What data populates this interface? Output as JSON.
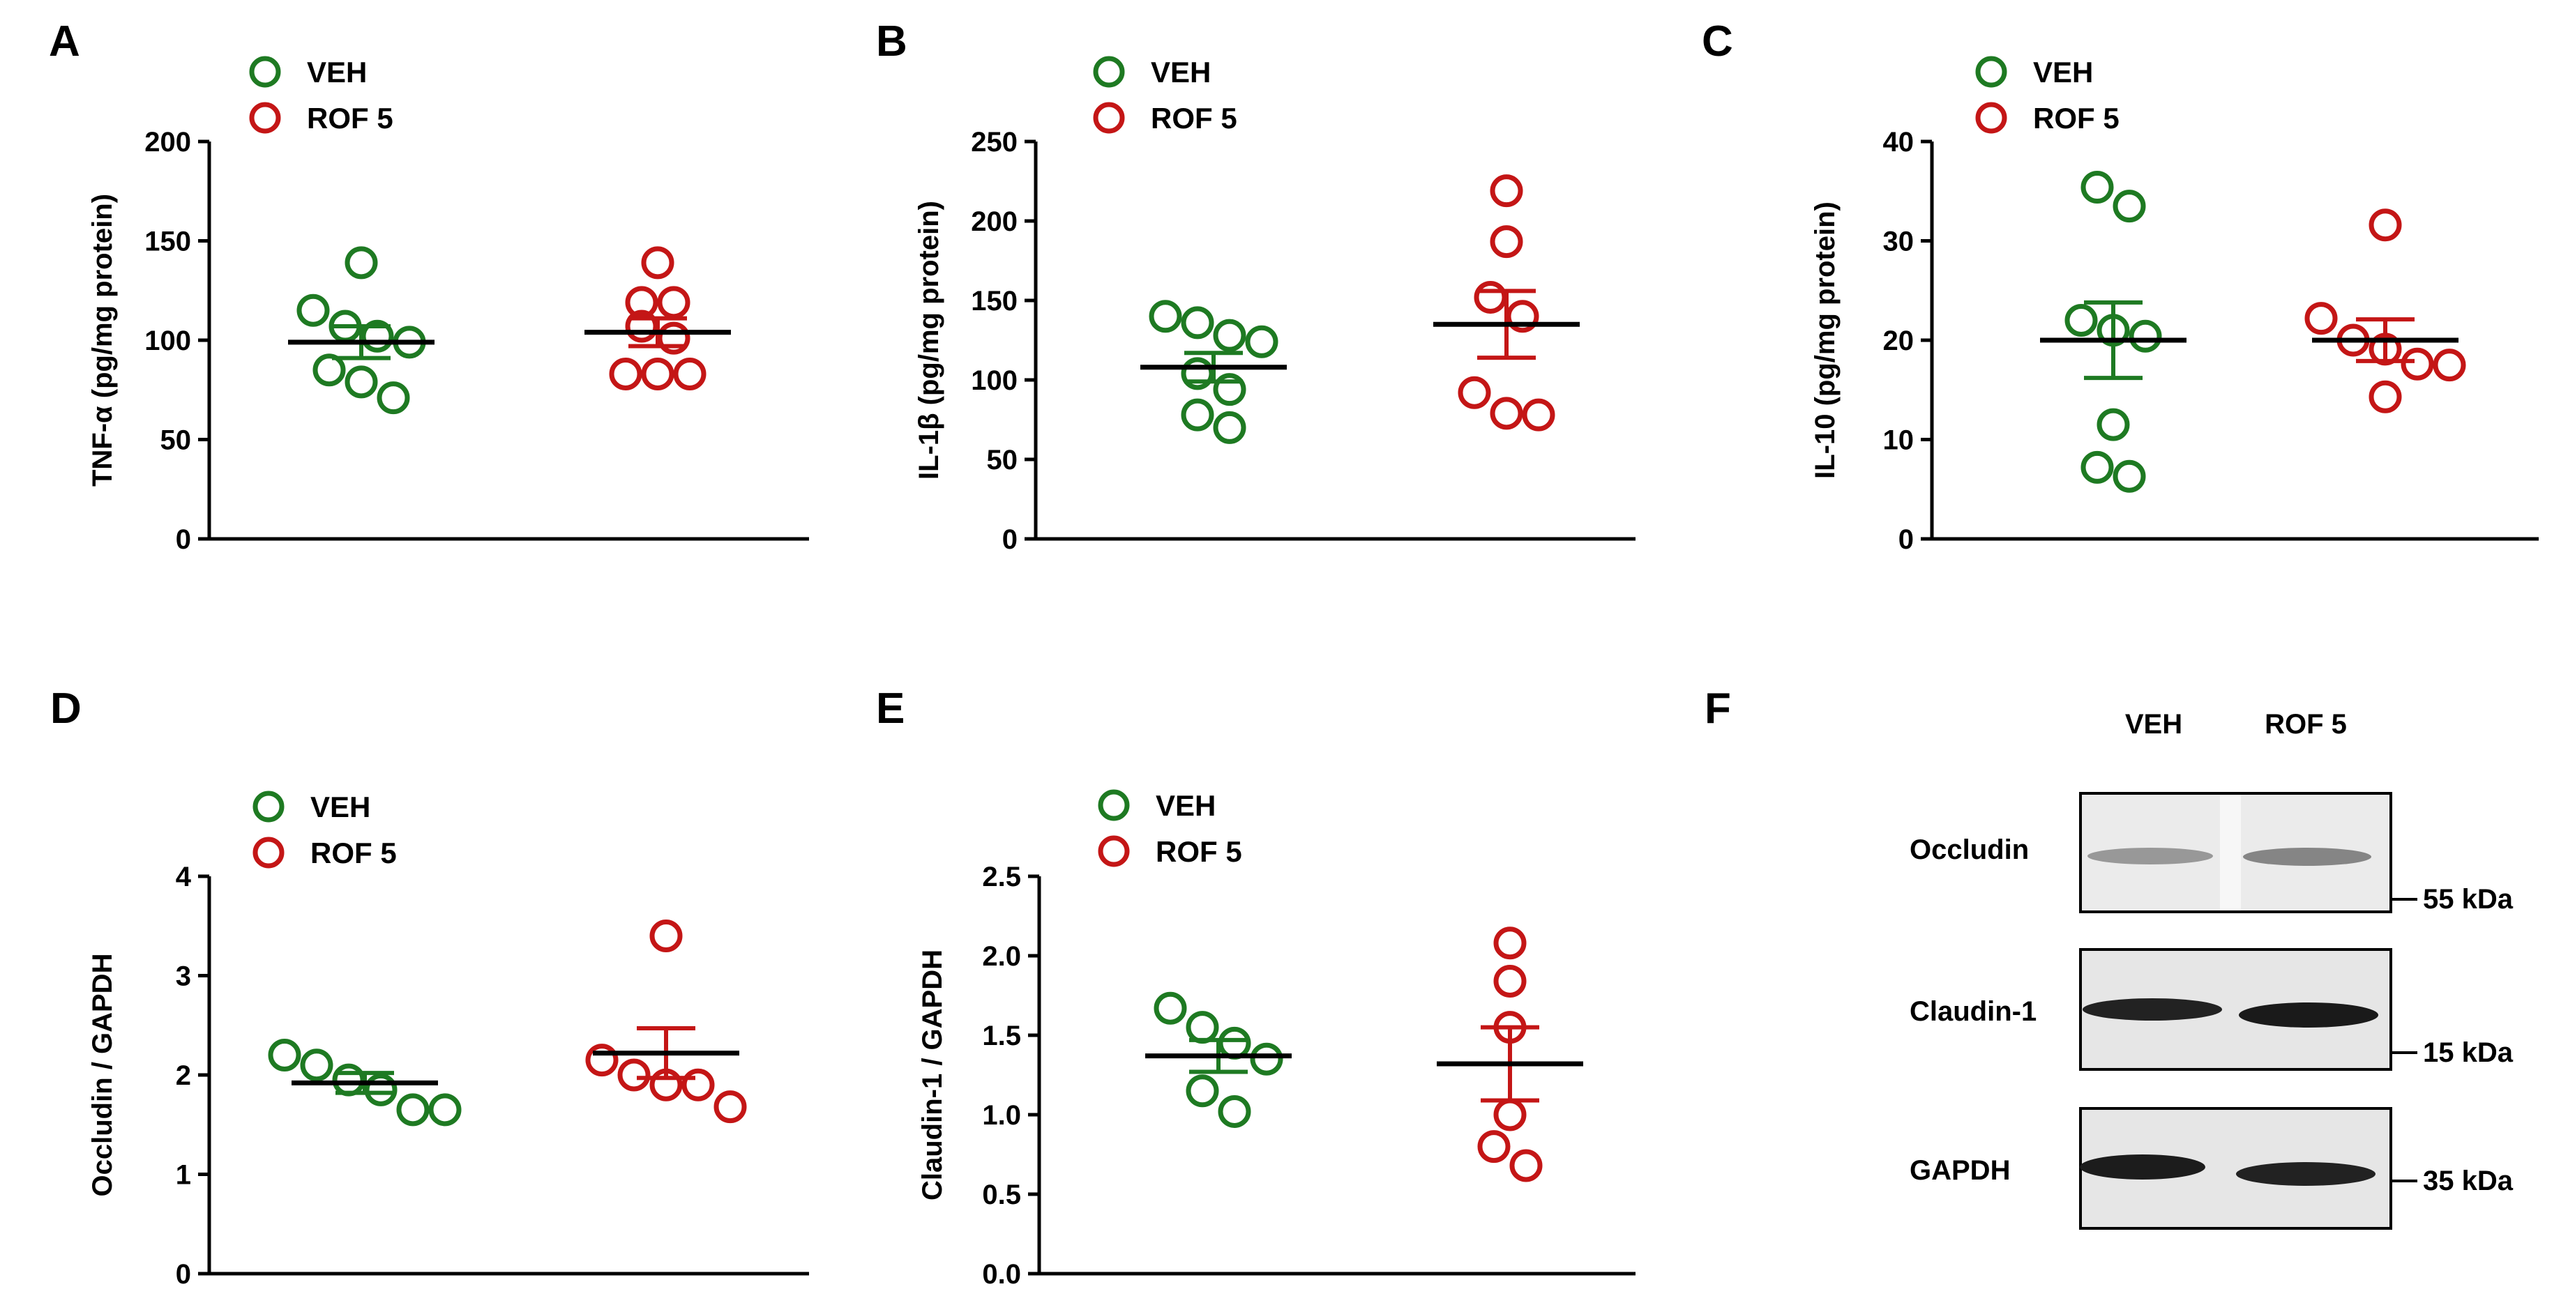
{
  "colors": {
    "veh": "#1e7a22",
    "rof": "#c41616",
    "axis": "#000000"
  },
  "legend": {
    "veh": "VEH",
    "rof": "ROF 5"
  },
  "chart_data": [
    {
      "panel": "A",
      "type": "scatter",
      "ylabel": "TNF-α (pg/mg protein)",
      "ylim": [
        0,
        200
      ],
      "yticks": [
        "0",
        "50",
        "100",
        "150",
        "200"
      ],
      "groups": [
        {
          "name": "VEH",
          "values": [
            139,
            115,
            102,
            107,
            99,
            85,
            79,
            71
          ],
          "mean": 99,
          "sem": 8
        },
        {
          "name": "ROF 5",
          "values": [
            139,
            119,
            119,
            107,
            101,
            83,
            83,
            83
          ],
          "mean": 104,
          "sem": 7
        }
      ]
    },
    {
      "panel": "B",
      "type": "scatter",
      "ylabel": "IL-1β (pg/mg protein)",
      "ylim": [
        0,
        250
      ],
      "yticks": [
        "0",
        "50",
        "100",
        "150",
        "200",
        "250"
      ],
      "groups": [
        {
          "name": "VEH",
          "values": [
            140,
            136,
            128,
            124,
            104,
            94,
            78,
            70
          ],
          "mean": 108,
          "sem": 9
        },
        {
          "name": "ROF 5",
          "values": [
            219,
            187,
            152,
            140,
            92,
            79,
            78
          ],
          "mean": 135,
          "sem": 21
        }
      ]
    },
    {
      "panel": "C",
      "type": "scatter",
      "ylabel": "IL-10 (pg/mg protein)",
      "ylim": [
        0,
        40
      ],
      "yticks": [
        "0",
        "10",
        "20",
        "30",
        "40"
      ],
      "groups": [
        {
          "name": "VEH",
          "values": [
            35.4,
            33.5,
            22,
            21,
            20.4,
            11.5,
            7.2,
            6.3
          ],
          "mean": 20,
          "sem": 3.8
        },
        {
          "name": "ROF 5",
          "values": [
            31.6,
            22.2,
            20,
            19.1,
            17.6,
            17.5,
            14.3
          ],
          "mean": 20,
          "sem": 2.1
        }
      ]
    },
    {
      "panel": "D",
      "type": "scatter",
      "ylabel": "Occludin / GAPDH",
      "ylim": [
        0,
        4
      ],
      "yticks": [
        "0",
        "1",
        "2",
        "3",
        "4"
      ],
      "groups": [
        {
          "name": "VEH",
          "values": [
            2.2,
            2.1,
            1.95,
            1.85,
            1.65,
            1.65
          ],
          "mean": 1.92,
          "sem": 0.1
        },
        {
          "name": "ROF 5",
          "values": [
            3.4,
            2.15,
            2.0,
            1.9,
            1.9,
            1.68
          ],
          "mean": 2.22,
          "sem": 0.25
        }
      ]
    },
    {
      "panel": "E",
      "type": "scatter",
      "ylabel": "Claudin-1 / GAPDH",
      "ylim": [
        0,
        2.5
      ],
      "yticks": [
        "0.0",
        "0.5",
        "1.0",
        "1.5",
        "2.0",
        "2.5"
      ],
      "groups": [
        {
          "name": "VEH",
          "values": [
            1.67,
            1.55,
            1.45,
            1.35,
            1.15,
            1.02
          ],
          "mean": 1.37,
          "sem": 0.1
        },
        {
          "name": "ROF 5",
          "values": [
            2.08,
            1.84,
            1.55,
            1.0,
            0.8,
            0.68
          ],
          "mean": 1.32,
          "sem": 0.23
        }
      ]
    }
  ],
  "western_blot": {
    "panel": "F",
    "lanes": [
      "VEH",
      "ROF 5"
    ],
    "rows": [
      {
        "protein": "Occludin",
        "marker": "55 kDa"
      },
      {
        "protein": "Claudin-1",
        "marker": "15 kDa"
      },
      {
        "protein": "GAPDH",
        "marker": "35 kDa"
      }
    ]
  }
}
